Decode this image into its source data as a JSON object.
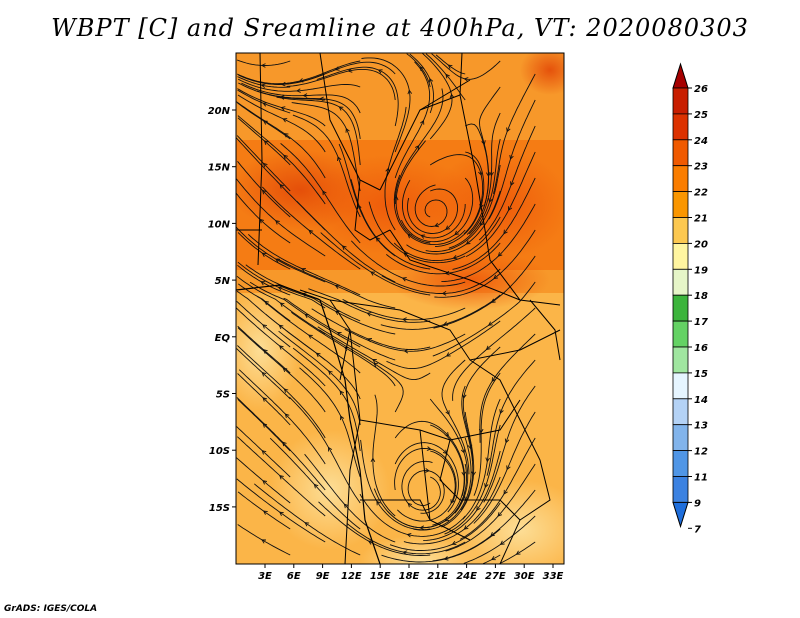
{
  "title": "WBPT [C] and Sreamline at 400hPa, VT: 2020080303",
  "credit": "GrADS: IGES/COLA",
  "map": {
    "lat_labels": [
      "20N",
      "15N",
      "10N",
      "5N",
      "EQ",
      "5S",
      "10S",
      "15S"
    ],
    "lon_labels": [
      "3E",
      "6E",
      "9E",
      "12E",
      "15E",
      "18E",
      "21E",
      "24E",
      "27E",
      "30E",
      "33E"
    ]
  },
  "colorbar": {
    "levels": [
      "26",
      "25",
      "24",
      "23",
      "22",
      "21",
      "20",
      "19",
      "18",
      "17",
      "16",
      "15",
      "14",
      "13",
      "12",
      "11",
      "9",
      "7"
    ],
    "colors": [
      "#a50000",
      "#c81e00",
      "#dc3200",
      "#f05a00",
      "#fa7d00",
      "#fa9600",
      "#fcc850",
      "#fff5a0",
      "#e6f5c8",
      "#3cb43c",
      "#64d264",
      "#a0e6a0",
      "#e6f5ff",
      "#b4d2f5",
      "#82b4eb",
      "#5096e6",
      "#3c82e1",
      "#1e6edc"
    ]
  }
}
